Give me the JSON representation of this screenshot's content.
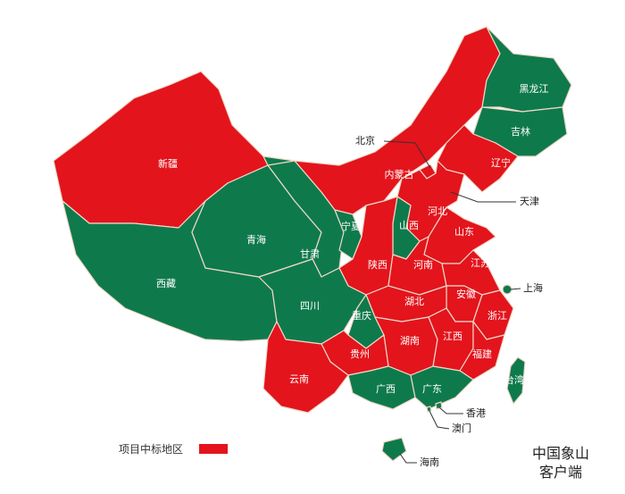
{
  "colors": {
    "won": "#e3141c",
    "other": "#0e7a4c"
  },
  "provinces": [
    {
      "id": "xinjiang",
      "name": "新疆",
      "won": true
    },
    {
      "id": "xizang",
      "name": "西藏",
      "won": false
    },
    {
      "id": "qinghai",
      "name": "青海",
      "won": false
    },
    {
      "id": "gansu",
      "name": "甘肃",
      "won": false
    },
    {
      "id": "neimenggu",
      "name": "内蒙古",
      "won": true
    },
    {
      "id": "heilongjiang",
      "name": "黑龙江",
      "won": false
    },
    {
      "id": "jilin",
      "name": "吉林",
      "won": false
    },
    {
      "id": "liaoning",
      "name": "辽宁",
      "won": true
    },
    {
      "id": "beijing",
      "name": "北京",
      "won": true
    },
    {
      "id": "tianjin",
      "name": "天津",
      "won": false
    },
    {
      "id": "hebei",
      "name": "河北",
      "won": true
    },
    {
      "id": "shanxi",
      "name": "山西",
      "won": false
    },
    {
      "id": "ningxia",
      "name": "宁夏",
      "won": false
    },
    {
      "id": "shaanxi",
      "name": "陕西",
      "won": true
    },
    {
      "id": "shandong",
      "name": "山东",
      "won": true
    },
    {
      "id": "henan",
      "name": "河南",
      "won": true
    },
    {
      "id": "jiangsu",
      "name": "江苏",
      "won": true
    },
    {
      "id": "anhui",
      "name": "安徽",
      "won": true
    },
    {
      "id": "shanghai",
      "name": "上海",
      "won": false
    },
    {
      "id": "zhejiang",
      "name": "浙江",
      "won": true
    },
    {
      "id": "hubei",
      "name": "湖北",
      "won": true
    },
    {
      "id": "sichuan",
      "name": "四川",
      "won": false
    },
    {
      "id": "chongqing",
      "name": "重庆",
      "won": false
    },
    {
      "id": "hunan",
      "name": "湖南",
      "won": true
    },
    {
      "id": "jiangxi",
      "name": "江西",
      "won": true
    },
    {
      "id": "fujian",
      "name": "福建",
      "won": true
    },
    {
      "id": "taiwan",
      "name": "台湾",
      "won": false
    },
    {
      "id": "guizhou",
      "name": "贵州",
      "won": true
    },
    {
      "id": "yunnan",
      "name": "云南",
      "won": true
    },
    {
      "id": "guangxi",
      "name": "广西",
      "won": false
    },
    {
      "id": "guangdong",
      "name": "广东",
      "won": false
    },
    {
      "id": "xianggang",
      "name": "香港",
      "won": false
    },
    {
      "id": "aomen",
      "name": "澳门",
      "won": false
    },
    {
      "id": "hainan",
      "name": "海南",
      "won": false
    }
  ],
  "legend": {
    "label": "项目中标地区"
  },
  "brand": {
    "line1": "中国象山",
    "line2": "客户端"
  }
}
